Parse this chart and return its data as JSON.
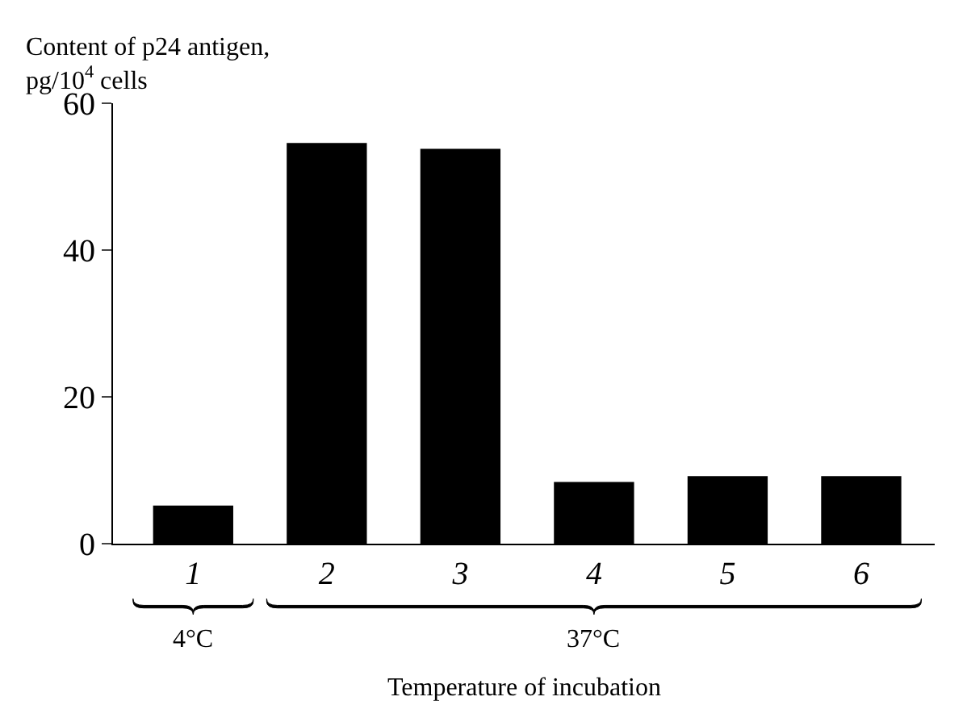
{
  "chart_data": {
    "type": "bar",
    "ylabel": "Content of p24 antigen,\npg/10$^{4}$ cells",
    "xlabel": "Temperature of incubation",
    "categories": [
      "1",
      "2",
      "3",
      "4",
      "5",
      "6"
    ],
    "values": [
      5.2,
      54.6,
      53.8,
      8.4,
      9.2,
      9.2
    ],
    "color": "#000000",
    "ylim": [
      0,
      60
    ],
    "yticks": [
      0,
      20,
      40,
      60
    ],
    "legend": false,
    "annotations": [
      "4°C",
      "37°C"
    ]
  }
}
